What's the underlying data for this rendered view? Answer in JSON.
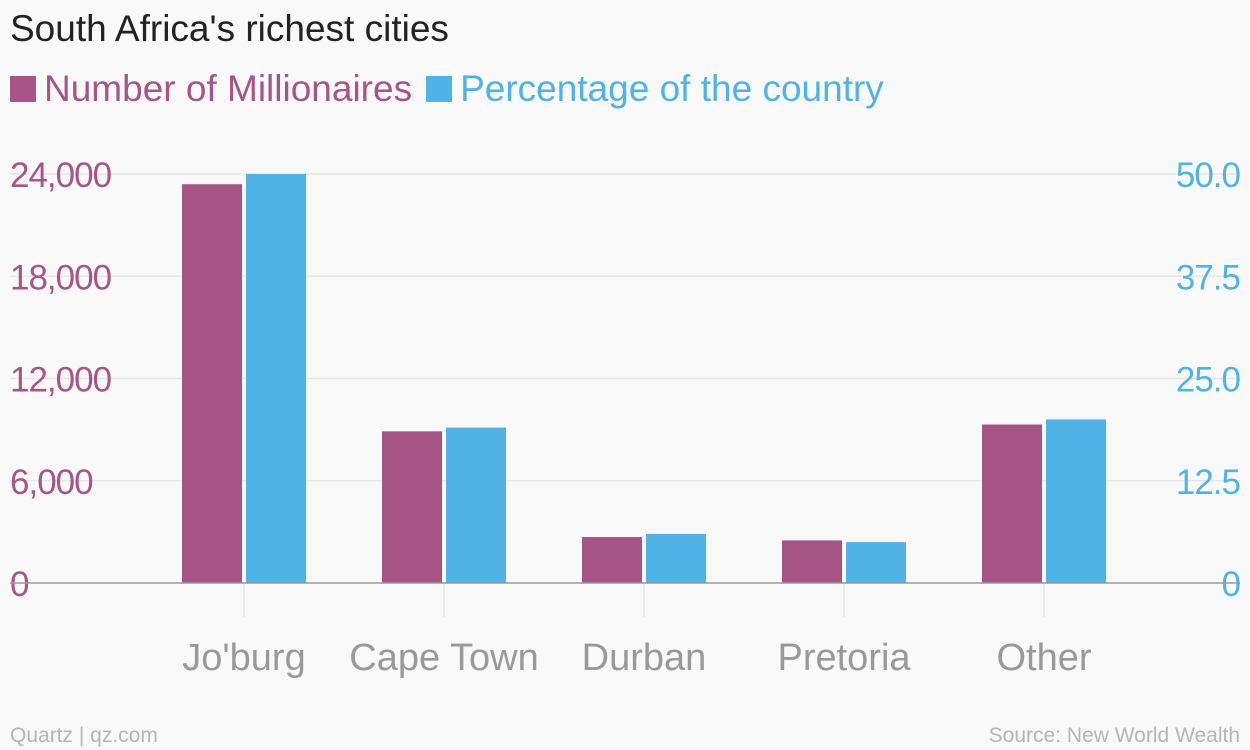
{
  "header": {
    "title": "South Africa's richest cities"
  },
  "legend": [
    {
      "label": "Number of Millionaires",
      "color": "#a65586"
    },
    {
      "label": "Percentage of the country",
      "color": "#51b2e5"
    }
  ],
  "footer": {
    "credit": "Quartz | qz.com",
    "source": "Source: New World Wealth"
  },
  "colors": {
    "left_axis": "#a65586",
    "right_axis": "#51b2e5",
    "category_label": "#999999",
    "gridline": "#e6e6e6",
    "baseline": "#9a9a9a"
  },
  "chart_data": {
    "type": "bar",
    "title": "South Africa's richest cities",
    "categories": [
      "Jo'burg",
      "Cape Town",
      "Durban",
      "Pretoria",
      "Other"
    ],
    "series": [
      {
        "name": "Number of Millionaires",
        "axis": "left",
        "values": [
          23400,
          8900,
          2700,
          2500,
          9300
        ]
      },
      {
        "name": "Percentage of the country",
        "axis": "right",
        "values": [
          50.0,
          19.0,
          6.0,
          5.0,
          20.0
        ]
      }
    ],
    "y_left": {
      "lim": [
        0,
        24000
      ],
      "ticks": [
        0,
        6000,
        12000,
        18000,
        24000
      ],
      "tick_labels": [
        "0",
        "6,000",
        "12,000",
        "18,000",
        "24,000"
      ]
    },
    "y_right": {
      "lim": [
        0,
        50
      ],
      "ticks": [
        0,
        12.5,
        25,
        37.5,
        50
      ],
      "tick_labels": [
        "0",
        "12.5",
        "25.0",
        "37.5",
        "50.0"
      ]
    },
    "grid": true,
    "legend_position": "top-left"
  }
}
